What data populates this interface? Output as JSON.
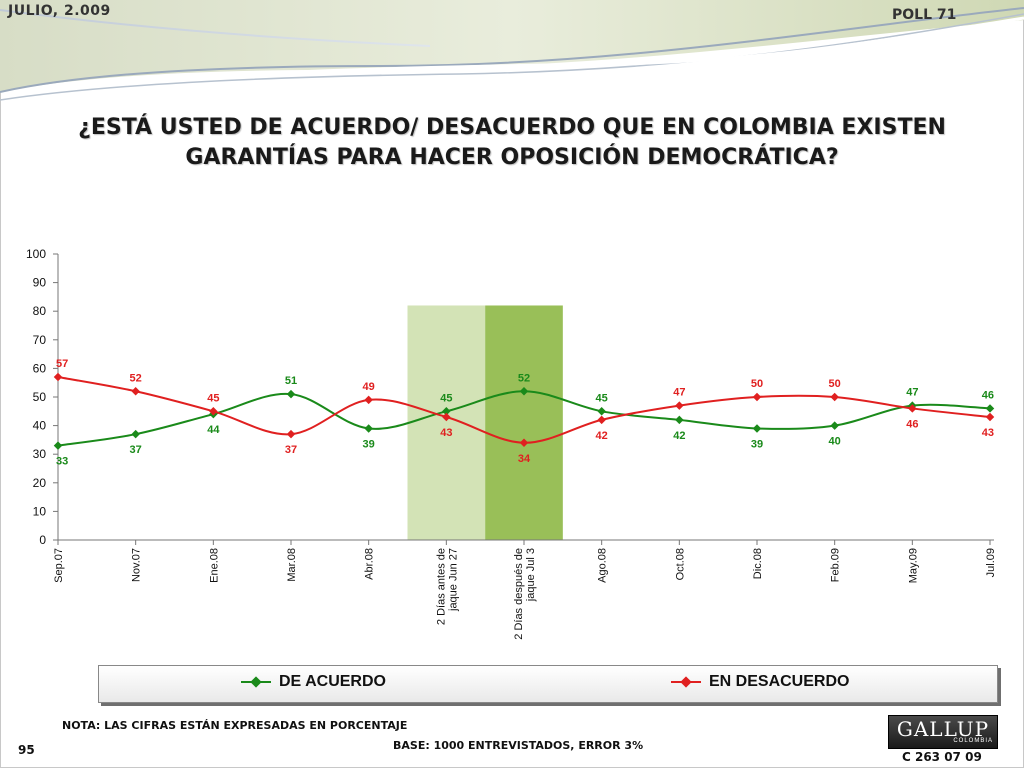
{
  "header": {
    "date": "JULIO, 2.009",
    "poll": "POLL 71"
  },
  "question": "¿ESTÁ USTED DE ACUERDO/ DESACUERDO QUE EN COLOMBIA EXISTEN GARANTÍAS PARA HACER OPOSICIÓN DEMOCRÁTICA?",
  "chart_data": {
    "type": "line",
    "categories": [
      "Sep.07",
      "Nov.07",
      "Ene.08",
      "Mar.08",
      "Abr.08",
      "2 Días antes de jaque Jun 27",
      "2 Días después de jaque Jul 3",
      "Ago.08",
      "Oct.08",
      "Dic.08",
      "Feb.09",
      "May.09",
      "Jul.09"
    ],
    "category_lines": [
      [
        "Sep.07"
      ],
      [
        "Nov.07"
      ],
      [
        "Ene.08"
      ],
      [
        "Mar.08"
      ],
      [
        "Abr.08"
      ],
      [
        "2 Días antes de",
        "jaque Jun 27"
      ],
      [
        "2 Días después de",
        "jaque Jul 3"
      ],
      [
        "Ago.08"
      ],
      [
        "Oct.08"
      ],
      [
        "Dic.08"
      ],
      [
        "Feb.09"
      ],
      [
        "May.09"
      ],
      [
        "Jul.09"
      ]
    ],
    "series": [
      {
        "name": "DE ACUERDO",
        "color": "#1a8a1a",
        "values": [
          33,
          37,
          44,
          51,
          39,
          45,
          52,
          45,
          42,
          39,
          40,
          47,
          46
        ]
      },
      {
        "name": "EN DESACUERDO",
        "color": "#e02020",
        "values": [
          57,
          52,
          45,
          37,
          49,
          43,
          34,
          42,
          47,
          50,
          50,
          46,
          43
        ]
      }
    ],
    "highlight_bands": [
      {
        "category": "2 Días antes de jaque Jun 27",
        "color": "#d3e3b6"
      },
      {
        "category": "2 Días después de jaque Jul 3",
        "color": "#99bf58"
      }
    ],
    "band_top": 82,
    "ylim": [
      0,
      100
    ],
    "yticks": [
      0,
      10,
      20,
      30,
      40,
      50,
      60,
      70,
      80,
      90,
      100
    ],
    "grid": false,
    "legend": "bottom"
  },
  "legend": {
    "items": [
      "DE ACUERDO",
      "EN DESACUERDO"
    ]
  },
  "footer": {
    "note": "NOTA: LAS CIFRAS ESTÁN EXPRESADAS EN PORCENTAJE",
    "page": "95",
    "base": "BASE: 1000 ENTREVISTADOS, ERROR 3%",
    "logo": "GALLUP",
    "logo_sub": "COLOMBIA",
    "code": "C 263 07 09"
  }
}
